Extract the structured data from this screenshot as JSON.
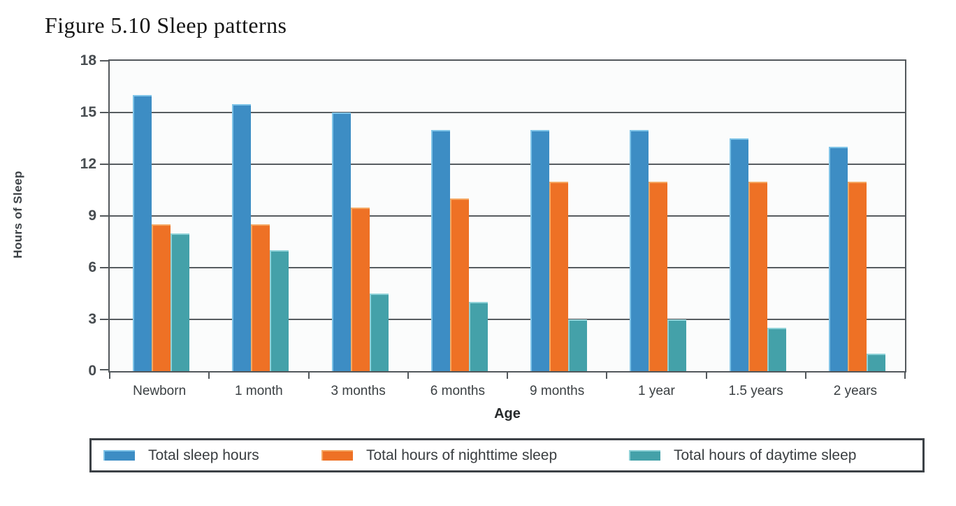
{
  "chart_data": {
    "type": "bar",
    "title": "Figure 5.10 Sleep patterns",
    "xlabel": "Age",
    "ylabel": "Hours of Sleep",
    "ylim": [
      0,
      18
    ],
    "yticks": [
      0,
      3,
      6,
      9,
      12,
      15,
      18
    ],
    "grid": true,
    "legend_position": "bottom",
    "categories": [
      "Newborn",
      "1 month",
      "3 months",
      "6 months",
      "9 months",
      "1 year",
      "1.5 years",
      "2 years"
    ],
    "series": [
      {
        "name": "Total sleep hours",
        "color": "#3d8dc4",
        "highlight": "#7fc4e8",
        "values": [
          16,
          15.5,
          15,
          14,
          14,
          14,
          13.5,
          13
        ]
      },
      {
        "name": "Total hours of nighttime sleep",
        "color": "#ee7125",
        "highlight": "#f5a863",
        "values": [
          8.5,
          8.5,
          9.5,
          10,
          11,
          11,
          11,
          11
        ]
      },
      {
        "name": "Total hours of daytime sleep",
        "color": "#44a1a9",
        "highlight": "#8fd2d8",
        "values": [
          8,
          7,
          4.5,
          4,
          3,
          3,
          2.5,
          1
        ]
      }
    ],
    "colors": {
      "grid": "#575c60",
      "frame": "#53585c",
      "legend_border": "#3c4146"
    }
  }
}
